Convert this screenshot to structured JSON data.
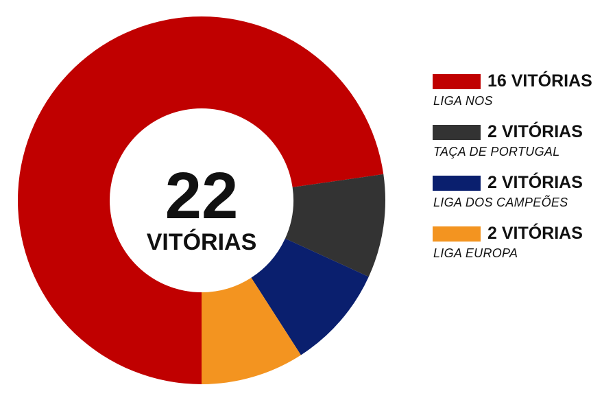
{
  "chart_data": {
    "type": "pie",
    "donut": true,
    "center": {
      "value": "22",
      "label": "VITÓRIAS"
    },
    "slices": [
      {
        "name": "LIGA NOS",
        "value": 16,
        "value_label": "16 VITÓRIAS",
        "color": "#c00000"
      },
      {
        "name": "TAÇA DE PORTUGAL",
        "value": 2,
        "value_label": "2 VITÓRIAS",
        "color": "#333333"
      },
      {
        "name": "LIGA DOS CAMPEÕES",
        "value": 2,
        "value_label": "2 VITÓRIAS",
        "color": "#0a1f6e"
      },
      {
        "name": "LIGA EUROPA",
        "value": 2,
        "value_label": "2 VITÓRIAS",
        "color": "#f39420"
      }
    ],
    "legend_position": "right"
  }
}
